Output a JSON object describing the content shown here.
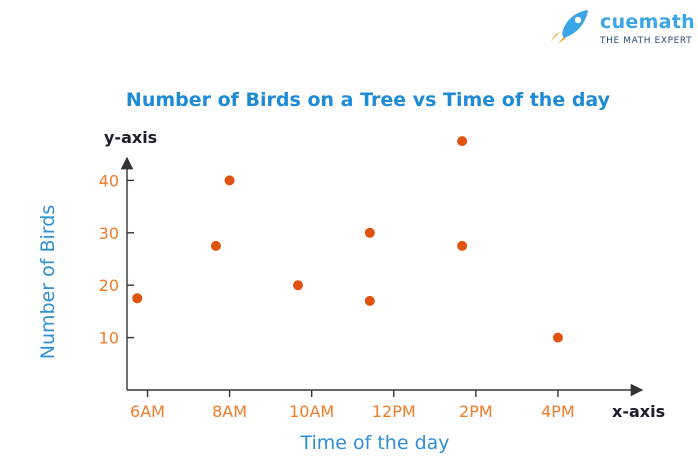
{
  "brand": {
    "name": "cuemath",
    "tagline": "THE MATH EXPERT",
    "colors": {
      "name": "#3aa6e6",
      "tagline": "#2d4e7a",
      "rocket_body": "#3aa6e6",
      "rocket_flame": "#f6a623"
    }
  },
  "colors": {
    "title": "#1e8bd6",
    "axis_labels": "#2f8fd4",
    "tick_labels": "#f07c2a",
    "points": "#e0520f",
    "axes": "#333333"
  },
  "chart_data": {
    "type": "scatter",
    "title": "Number of Birds on a Tree vs Time of the day",
    "xlabel": "Time of the day",
    "ylabel": "Number of Birds",
    "x_axis_name": "x-axis",
    "y_axis_name": "y-axis",
    "x_ticks": [
      "6AM",
      "8AM",
      "10AM",
      "12PM",
      "2PM",
      "4PM"
    ],
    "y_ticks": [
      10,
      20,
      30,
      40
    ],
    "xlim": [
      "5:30AM",
      "6PM"
    ],
    "ylim": [
      0,
      50
    ],
    "grid": false,
    "points": [
      {
        "x": "5:45AM",
        "y": 17.5
      },
      {
        "x": "7:40AM",
        "y": 27.5
      },
      {
        "x": "8:00AM",
        "y": 40
      },
      {
        "x": "9:40AM",
        "y": 20
      },
      {
        "x": "11:25AM",
        "y": 30
      },
      {
        "x": "11:25AM",
        "y": 17
      },
      {
        "x": "1:40PM",
        "y": 47.5
      },
      {
        "x": "1:40PM",
        "y": 27.5
      },
      {
        "x": "4:00PM",
        "y": 10
      }
    ]
  }
}
